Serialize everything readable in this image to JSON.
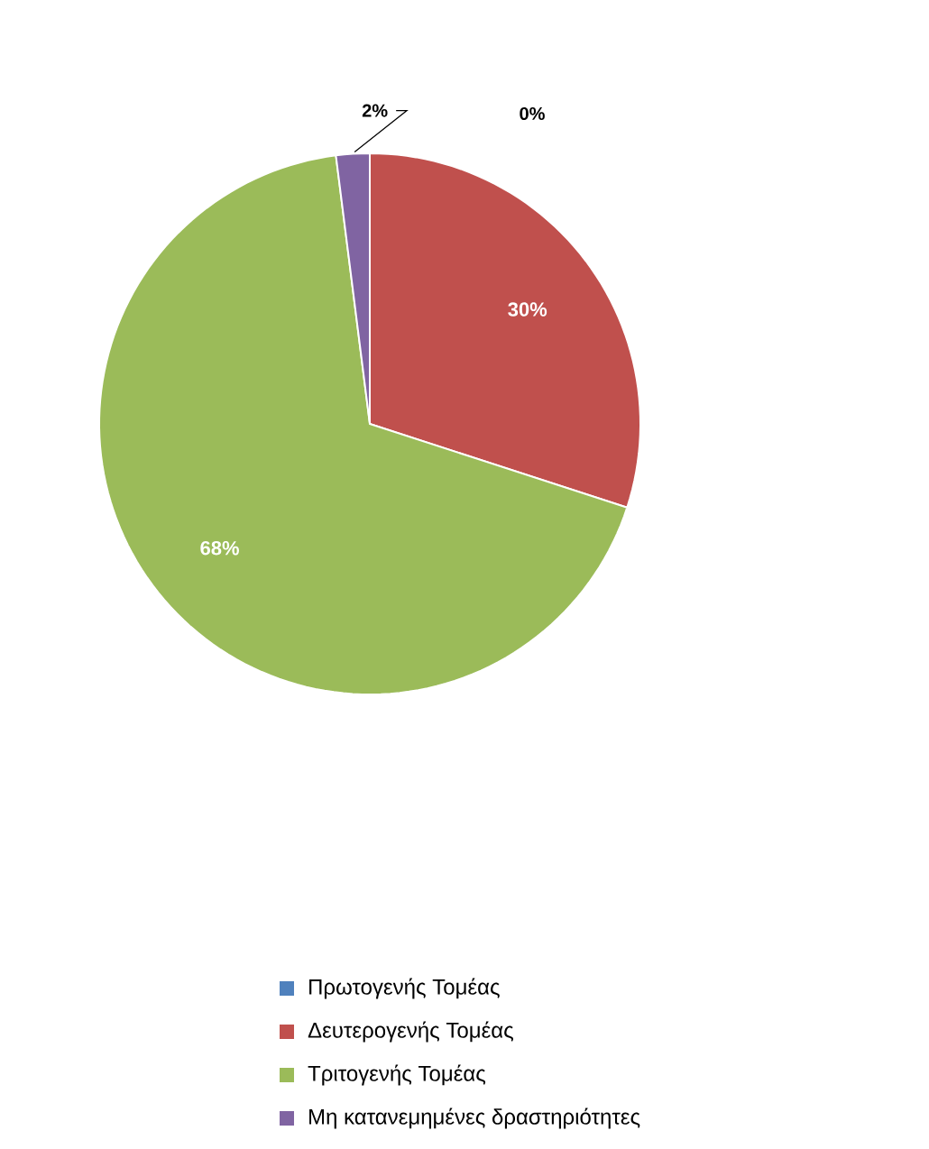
{
  "chart_data": {
    "type": "pie",
    "categories": [
      "Πρωτογενής Τομέας",
      "Δευτερογενής Τομέας",
      "Τριτογενής Τομέας",
      "Μη κατανεμημένες δραστηριότητες"
    ],
    "values": [
      0,
      30,
      68,
      2
    ],
    "value_labels": [
      "0%",
      "30%",
      "68%",
      "2%"
    ],
    "colors": [
      "#4f81bd",
      "#c0504d",
      "#9bbb59",
      "#8064a2"
    ],
    "data_labels": true,
    "legend": "bottom"
  }
}
